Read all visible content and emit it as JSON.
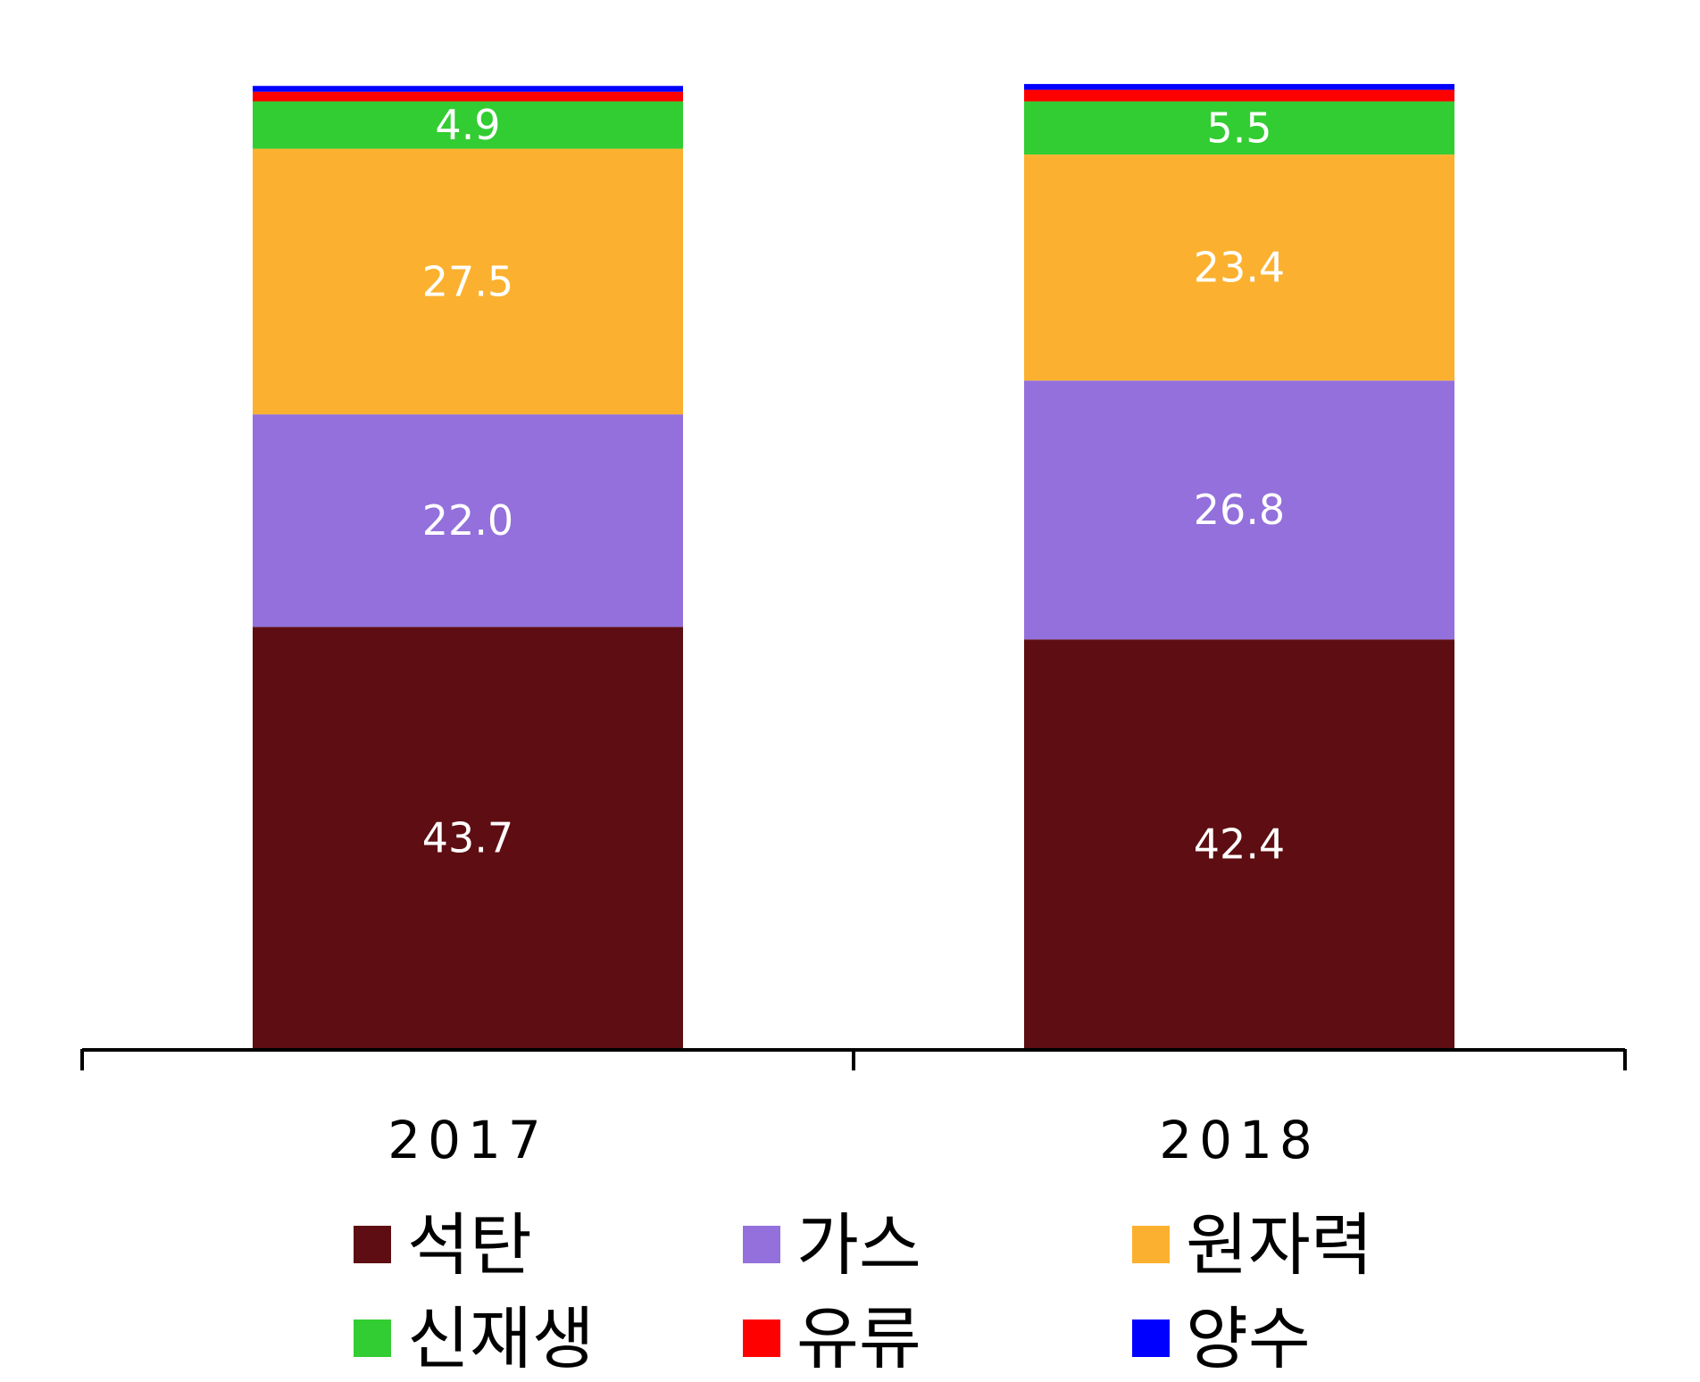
{
  "chart_data": {
    "type": "bar",
    "stacked": true,
    "categories": [
      "2017",
      "2018"
    ],
    "series": [
      {
        "name": "석탄",
        "color": "#5E0E12",
        "values": [
          43.7,
          42.4
        ],
        "labels": [
          "43.7",
          "42.4"
        ]
      },
      {
        "name": "가스",
        "color": "#9370DB",
        "values": [
          22.0,
          26.8
        ],
        "labels": [
          "22.0",
          "26.8"
        ]
      },
      {
        "name": "원자력",
        "color": "#FBB12F",
        "values": [
          27.5,
          23.4
        ],
        "labels": [
          "27.5",
          "23.4"
        ]
      },
      {
        "name": "신재생",
        "color": "#32CD32",
        "values": [
          4.9,
          5.5
        ],
        "labels": [
          "4.9",
          "5.5"
        ]
      },
      {
        "name": "유류",
        "color": "#FF0000",
        "values": [
          1.0,
          1.2
        ],
        "labels": [
          "",
          ""
        ]
      },
      {
        "name": "양수",
        "color": "#0000FF",
        "values": [
          0.6,
          0.6
        ],
        "labels": [
          "",
          ""
        ]
      }
    ],
    "ylim": [
      0,
      100
    ],
    "grid": false,
    "legend_position": "bottom"
  }
}
